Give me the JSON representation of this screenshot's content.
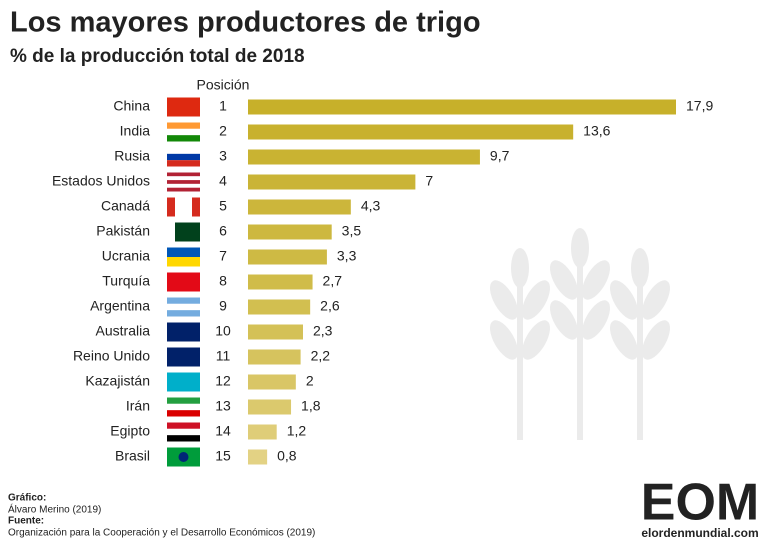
{
  "chart_data": {
    "type": "bar",
    "title": "Los mayores productores de trigo",
    "subtitle": "% de la producción total de 2018",
    "position_heading": "Posición",
    "categories": [
      "China",
      "India",
      "Rusia",
      "Estados Unidos",
      "Canadá",
      "Pakistán",
      "Ucrania",
      "Turquía",
      "Argentina",
      "Australia",
      "Reino Unido",
      "Kazajistán",
      "Irán",
      "Egipto",
      "Brasil"
    ],
    "positions": [
      1,
      2,
      3,
      4,
      5,
      6,
      7,
      8,
      9,
      10,
      11,
      12,
      13,
      14,
      15
    ],
    "values": [
      17.9,
      13.6,
      9.7,
      7,
      4.3,
      3.5,
      3.3,
      2.7,
      2.6,
      2.3,
      2.2,
      2,
      1.8,
      1.2,
      0.8
    ],
    "value_labels": [
      "17,9",
      "13,6",
      "9,7",
      "7",
      "4,3",
      "3,5",
      "3,3",
      "2,7",
      "2,6",
      "2,3",
      "2,2",
      "2",
      "1,8",
      "1,2",
      "0,8"
    ],
    "colors": [
      "#c7b02a",
      "#c8b12e",
      "#c9b332",
      "#cab436",
      "#ccb63b",
      "#cdb83f",
      "#ceba44",
      "#d0bc49",
      "#d2bf50",
      "#d4c157",
      "#d6c35e",
      "#d9c666",
      "#dbc96d",
      "#dfcd78",
      "#e3d284"
    ],
    "credit_heading": "Gráfico:",
    "credit": "Álvaro Merino (2019)",
    "source_heading": "Fuente:",
    "source": "Organización para la Cooperación y el Desarrollo Económicos (2019)",
    "logo": "EOM",
    "website": "elordenmundial.com"
  }
}
